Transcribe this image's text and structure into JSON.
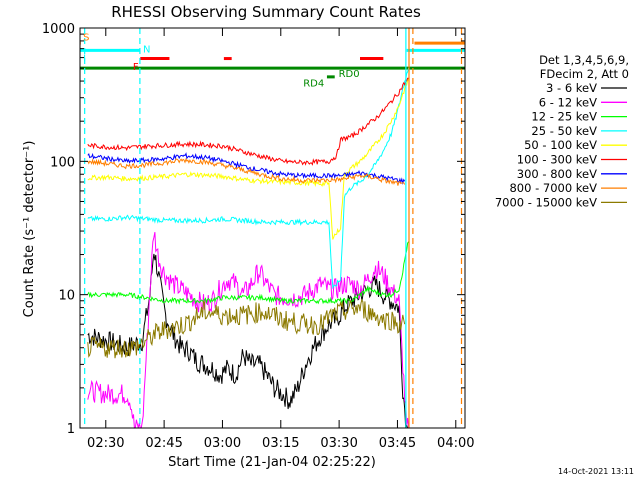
{
  "chart_data": {
    "type": "line",
    "title": "RHESSI Observing Summary Count Rates",
    "xlabel": "Start Time (21-Jan-04 02:25:22)",
    "ylabel": "Count Rate (s⁻¹ detector⁻¹)",
    "xlim_minutes_after_start": [
      -2,
      97
    ],
    "ylim": [
      1,
      1000
    ],
    "yscale": "log",
    "x_ticks": [
      {
        "minute": 4.63,
        "label": "02:30"
      },
      {
        "minute": 19.63,
        "label": "02:45"
      },
      {
        "minute": 34.63,
        "label": "03:00"
      },
      {
        "minute": 49.63,
        "label": "03:15"
      },
      {
        "minute": 64.63,
        "label": "03:30"
      },
      {
        "minute": 79.63,
        "label": "03:45"
      },
      {
        "minute": 94.63,
        "label": "04:00"
      }
    ],
    "y_ticks": [
      {
        "value": 1,
        "label": "1"
      },
      {
        "value": 10,
        "label": "10"
      },
      {
        "value": 100,
        "label": "100"
      },
      {
        "value": 1000,
        "label": "1000"
      }
    ],
    "legend_header": [
      "Det 1,3,4,5,6,9,",
      "FDecim 2, Att 0"
    ],
    "legend_position": "right",
    "series": [
      {
        "name": "3 - 6 keV",
        "color": "#000000",
        "points": [
          [
            0,
            5
          ],
          [
            5,
            4.5
          ],
          [
            10,
            4
          ],
          [
            14,
            4.5
          ],
          [
            16,
            10
          ],
          [
            17,
            22
          ],
          [
            18,
            15
          ],
          [
            19,
            10
          ],
          [
            20,
            7
          ],
          [
            22,
            5
          ],
          [
            24,
            4
          ],
          [
            26,
            3.8
          ],
          [
            28,
            3.2
          ],
          [
            30,
            3
          ],
          [
            32,
            2.8
          ],
          [
            34,
            2.5
          ],
          [
            36,
            2.8
          ],
          [
            38,
            2.5
          ],
          [
            40,
            3.5
          ],
          [
            42,
            3
          ],
          [
            44,
            3
          ],
          [
            46,
            2.5
          ],
          [
            48,
            2
          ],
          [
            50,
            1.8
          ],
          [
            52,
            1.6
          ],
          [
            54,
            2
          ],
          [
            56,
            3
          ],
          [
            58,
            4
          ],
          [
            60,
            5
          ],
          [
            62,
            6
          ],
          [
            64,
            6.5
          ],
          [
            66,
            8
          ],
          [
            68,
            9
          ],
          [
            70,
            10
          ],
          [
            72,
            11
          ],
          [
            74,
            12
          ],
          [
            76,
            10
          ],
          [
            78,
            9
          ],
          [
            80,
            8
          ],
          [
            81,
            2
          ],
          [
            82,
            1
          ],
          [
            82.5,
            1
          ]
        ]
      },
      {
        "name": "6 - 12 keV",
        "color": "#ff00ff",
        "points": [
          [
            0,
            1.9
          ],
          [
            5,
            1.8
          ],
          [
            10,
            1.8
          ],
          [
            11,
            1.6
          ],
          [
            12,
            1
          ],
          [
            14,
            1
          ],
          [
            16,
            11
          ],
          [
            17,
            30
          ],
          [
            18,
            20
          ],
          [
            19,
            16
          ],
          [
            20,
            14
          ],
          [
            22,
            12
          ],
          [
            24,
            11
          ],
          [
            26,
            10
          ],
          [
            28,
            9
          ],
          [
            30,
            8.5
          ],
          [
            32,
            9
          ],
          [
            34,
            11
          ],
          [
            36,
            13
          ],
          [
            38,
            12
          ],
          [
            40,
            10
          ],
          [
            42,
            12
          ],
          [
            44,
            15
          ],
          [
            46,
            12
          ],
          [
            48,
            10
          ],
          [
            50,
            9.5
          ],
          [
            52,
            9.5
          ],
          [
            54,
            9.5
          ],
          [
            56,
            10
          ],
          [
            58,
            11
          ],
          [
            60,
            12
          ],
          [
            62,
            11
          ],
          [
            64,
            11
          ],
          [
            66,
            12
          ],
          [
            68,
            12
          ],
          [
            70,
            11
          ],
          [
            72,
            13
          ],
          [
            74,
            16
          ],
          [
            76,
            14
          ],
          [
            78,
            11
          ],
          [
            80,
            9
          ],
          [
            81,
            3
          ],
          [
            82,
            1
          ],
          [
            82.5,
            1
          ]
        ]
      },
      {
        "name": "12 - 25 keV",
        "color": "#00ff00",
        "points": [
          [
            0,
            10
          ],
          [
            5,
            10
          ],
          [
            10,
            10
          ],
          [
            15,
            9.5
          ],
          [
            20,
            9
          ],
          [
            25,
            9
          ],
          [
            30,
            9
          ],
          [
            35,
            9.5
          ],
          [
            40,
            9.5
          ],
          [
            45,
            9.5
          ],
          [
            50,
            9
          ],
          [
            55,
            9
          ],
          [
            60,
            9
          ],
          [
            65,
            9
          ],
          [
            68,
            9
          ],
          [
            70,
            10
          ],
          [
            72,
            11
          ],
          [
            74,
            10.5
          ],
          [
            76,
            10
          ],
          [
            78,
            10
          ],
          [
            80,
            11
          ],
          [
            81,
            15
          ],
          [
            82,
            22
          ],
          [
            82.5,
            25
          ]
        ]
      },
      {
        "name": "25 - 50 keV",
        "color": "#00ffff",
        "points": [
          [
            0,
            37
          ],
          [
            5,
            37
          ],
          [
            10,
            38
          ],
          [
            15,
            37
          ],
          [
            20,
            36
          ],
          [
            25,
            36
          ],
          [
            30,
            36
          ],
          [
            35,
            37
          ],
          [
            40,
            36
          ],
          [
            45,
            35
          ],
          [
            50,
            35
          ],
          [
            55,
            35
          ],
          [
            60,
            35
          ],
          [
            62,
            35
          ],
          [
            63,
            11
          ],
          [
            64,
            12
          ],
          [
            65,
            13
          ],
          [
            66,
            55
          ],
          [
            67,
            60
          ],
          [
            68,
            65
          ],
          [
            70,
            70
          ],
          [
            72,
            80
          ],
          [
            74,
            95
          ],
          [
            76,
            120
          ],
          [
            78,
            160
          ],
          [
            79,
            200
          ],
          [
            80,
            260
          ],
          [
            81,
            350
          ],
          [
            82,
            450
          ],
          [
            82.5,
            500
          ]
        ]
      },
      {
        "name": "50 - 100 keV",
        "color": "#ffff00",
        "points": [
          [
            0,
            75
          ],
          [
            5,
            76
          ],
          [
            10,
            74
          ],
          [
            15,
            75
          ],
          [
            20,
            77
          ],
          [
            25,
            80
          ],
          [
            30,
            79
          ],
          [
            35,
            77
          ],
          [
            40,
            73
          ],
          [
            45,
            71
          ],
          [
            50,
            70
          ],
          [
            55,
            69
          ],
          [
            60,
            68
          ],
          [
            62,
            68
          ],
          [
            63,
            27
          ],
          [
            64,
            29
          ],
          [
            65,
            32
          ],
          [
            66,
            80
          ],
          [
            68,
            90
          ],
          [
            70,
            100
          ],
          [
            72,
            115
          ],
          [
            74,
            135
          ],
          [
            76,
            160
          ],
          [
            78,
            200
          ],
          [
            80,
            260
          ],
          [
            81,
            320
          ],
          [
            82,
            380
          ],
          [
            82.5,
            420
          ]
        ]
      },
      {
        "name": "100 - 300 keV",
        "color": "#ff0000",
        "points": [
          [
            0,
            132
          ],
          [
            5,
            128
          ],
          [
            10,
            126
          ],
          [
            15,
            130
          ],
          [
            20,
            132
          ],
          [
            25,
            135
          ],
          [
            30,
            133
          ],
          [
            35,
            130
          ],
          [
            40,
            118
          ],
          [
            45,
            108
          ],
          [
            50,
            100
          ],
          [
            55,
            98
          ],
          [
            60,
            99
          ],
          [
            62,
            100
          ],
          [
            64,
            110
          ],
          [
            65,
            145
          ],
          [
            68,
            155
          ],
          [
            70,
            170
          ],
          [
            72,
            190
          ],
          [
            74,
            210
          ],
          [
            76,
            240
          ],
          [
            78,
            280
          ],
          [
            80,
            330
          ],
          [
            81,
            370
          ],
          [
            82,
            400
          ],
          [
            82.5,
            420
          ]
        ]
      },
      {
        "name": "300 - 800 keV",
        "color": "#0000ff",
        "points": [
          [
            0,
            110
          ],
          [
            5,
            105
          ],
          [
            10,
            100
          ],
          [
            15,
            102
          ],
          [
            20,
            105
          ],
          [
            25,
            110
          ],
          [
            30,
            107
          ],
          [
            35,
            100
          ],
          [
            40,
            92
          ],
          [
            45,
            85
          ],
          [
            50,
            80
          ],
          [
            55,
            78
          ],
          [
            60,
            78
          ],
          [
            65,
            78
          ],
          [
            68,
            80
          ],
          [
            70,
            82
          ],
          [
            72,
            80
          ],
          [
            74,
            78
          ],
          [
            76,
            76
          ],
          [
            78,
            74
          ],
          [
            80,
            72
          ],
          [
            81,
            71
          ],
          [
            81.5,
            71
          ]
        ]
      },
      {
        "name": "800 - 7000 keV",
        "color": "#ff7f00",
        "points": [
          [
            0,
            100
          ],
          [
            5,
            96
          ],
          [
            10,
            92
          ],
          [
            15,
            94
          ],
          [
            20,
            98
          ],
          [
            25,
            102
          ],
          [
            30,
            99
          ],
          [
            35,
            93
          ],
          [
            40,
            86
          ],
          [
            45,
            79
          ],
          [
            50,
            74
          ],
          [
            55,
            72
          ],
          [
            60,
            72
          ],
          [
            65,
            73
          ],
          [
            68,
            76
          ],
          [
            70,
            78
          ],
          [
            72,
            77
          ],
          [
            74,
            75
          ],
          [
            76,
            72
          ],
          [
            78,
            70
          ],
          [
            80,
            68
          ],
          [
            81,
            67
          ],
          [
            81.5,
            67
          ]
        ]
      },
      {
        "name": "7000 - 15000 keV",
        "color": "#8c7a00",
        "points": [
          [
            0,
            4
          ],
          [
            5,
            4
          ],
          [
            10,
            4
          ],
          [
            12,
            4
          ],
          [
            15,
            4.5
          ],
          [
            17,
            5
          ],
          [
            20,
            5.5
          ],
          [
            25,
            6
          ],
          [
            30,
            7.5
          ],
          [
            35,
            7
          ],
          [
            40,
            7
          ],
          [
            45,
            7.5
          ],
          [
            50,
            6.5
          ],
          [
            55,
            6
          ],
          [
            60,
            6
          ],
          [
            63,
            7
          ],
          [
            66,
            7.5
          ],
          [
            70,
            8
          ],
          [
            72,
            7.5
          ],
          [
            74,
            7
          ],
          [
            76,
            6.5
          ],
          [
            78,
            6.5
          ],
          [
            80,
            6
          ],
          [
            81,
            6
          ],
          [
            81.5,
            6
          ]
        ]
      }
    ],
    "annotations": [
      {
        "label": "S",
        "color": "#ff7f00"
      },
      {
        "label": "I",
        "color": "#00ffff"
      },
      {
        "label": "N",
        "color": "#00ffff"
      },
      {
        "label": "F",
        "color": "#ff0000"
      },
      {
        "label": "RD0",
        "color": "#008800"
      },
      {
        "label": "RD4",
        "color": "#008800"
      }
    ],
    "status_bars": [
      {
        "name": "saa",
        "color": "#ff7f00",
        "ranges": [
          [
            -2,
            -1.8
          ],
          [
            84,
            97
          ]
        ],
        "level": 770
      },
      {
        "name": "night",
        "color": "#00ffff",
        "ranges": [
          [
            -2,
            13.3
          ],
          [
            82,
            97
          ]
        ],
        "level": 680
      },
      {
        "name": "flare",
        "color": "#ff0000",
        "ranges": [
          [
            13.5,
            21
          ],
          [
            35,
            37
          ],
          [
            70,
            76
          ]
        ],
        "level": 590
      },
      {
        "name": "decimation",
        "color": "#008800",
        "ranges": [
          [
            -2,
            97
          ]
        ],
        "level": 500
      },
      {
        "name": "rd4",
        "color": "#008800",
        "ranges": [
          [
            61.5,
            63.5
          ]
        ],
        "level": 430
      }
    ],
    "vertical_lines": [
      {
        "minute": -0.8,
        "color": "#00ffff",
        "dashed": true
      },
      {
        "minute": 13.4,
        "color": "#00ffff",
        "dashed": true
      },
      {
        "minute": 81.8,
        "color": "#00ffff",
        "dashed": false
      },
      {
        "minute": 82.6,
        "color": "#ff7f00",
        "dashed": false
      },
      {
        "minute": 83.6,
        "color": "#ff7f00",
        "dashed": true
      },
      {
        "minute": 96.1,
        "color": "#ff7f00",
        "dashed": true
      }
    ]
  },
  "footer": "14-Oct-2021 13:11"
}
